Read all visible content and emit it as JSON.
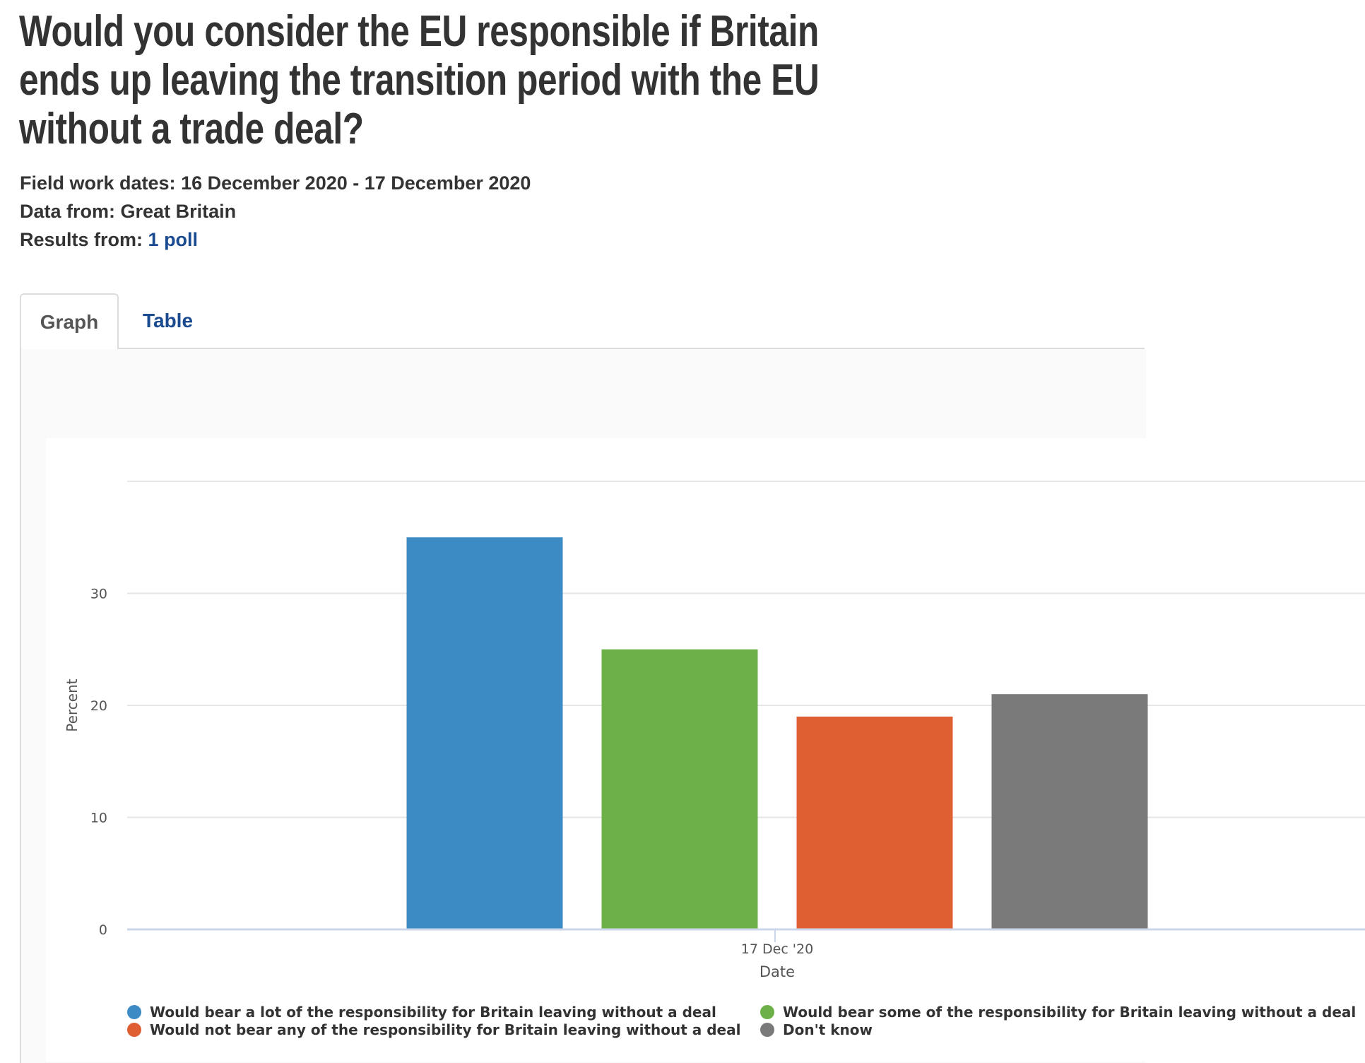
{
  "title_lines": [
    "Would you consider the EU responsible if Britain",
    "ends up leaving the transition period with the EU",
    "without a trade deal?"
  ],
  "meta": {
    "fieldwork_label": "Field work dates:",
    "fieldwork_value": "16 December 2020 - 17 December 2020",
    "data_from_label": "Data from:",
    "data_from_value": "Great Britain",
    "results_label": "Results from:",
    "results_link": "1 poll"
  },
  "tabs": [
    {
      "label": "Graph",
      "active": true
    },
    {
      "label": "Table",
      "active": false
    }
  ],
  "chart_data": {
    "type": "bar",
    "categories": [
      "17 Dec '20"
    ],
    "xlabel": "Date",
    "ylabel": "Percent",
    "ylim": [
      0,
      40
    ],
    "yticks": [
      0,
      10,
      20,
      30
    ],
    "grid": true,
    "legend_position": "bottom",
    "series": [
      {
        "name": "Would bear a lot of the responsibility for Britain leaving without a deal",
        "values": [
          35
        ],
        "color": "#3d8bc4"
      },
      {
        "name": "Would bear some of the responsibility for Britain leaving without a deal",
        "values": [
          25
        ],
        "color": "#6cb047"
      },
      {
        "name": "Would not bear any of the responsibility for Britain leaving without a deal",
        "values": [
          19
        ],
        "color": "#df5f32"
      },
      {
        "name": "Don't know",
        "values": [
          21
        ],
        "color": "#7a7a7a"
      }
    ]
  }
}
